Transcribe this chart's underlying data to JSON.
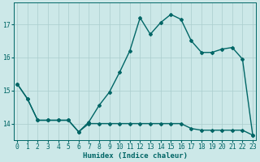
{
  "xlabel": "Humidex (Indice chaleur)",
  "background_color": "#cce8e8",
  "grid_color": "#aacece",
  "line_color": "#006666",
  "x": [
    0,
    1,
    2,
    3,
    4,
    5,
    6,
    7,
    8,
    9,
    10,
    11,
    12,
    13,
    14,
    15,
    16,
    17,
    18,
    19,
    20,
    21,
    22,
    23
  ],
  "y_upper": [
    15.2,
    14.75,
    14.1,
    14.1,
    14.1,
    14.1,
    13.75,
    14.05,
    14.55,
    14.95,
    15.55,
    16.2,
    17.2,
    16.7,
    17.05,
    17.3,
    17.15,
    16.5,
    16.15,
    16.15,
    16.25,
    16.3,
    15.95,
    13.65
  ],
  "y_lower": [
    15.2,
    14.75,
    14.1,
    14.1,
    14.1,
    14.1,
    13.75,
    14.0,
    14.0,
    14.0,
    14.0,
    14.0,
    14.0,
    14.0,
    14.0,
    14.0,
    14.0,
    13.85,
    13.8,
    13.8,
    13.8,
    13.8,
    13.8,
    13.65
  ],
  "ylim": [
    13.5,
    17.65
  ],
  "yticks": [
    14,
    15,
    16,
    17
  ],
  "xticks": [
    0,
    1,
    2,
    3,
    4,
    5,
    6,
    7,
    8,
    9,
    10,
    11,
    12,
    13,
    14,
    15,
    16,
    17,
    18,
    19,
    20,
    21,
    22,
    23
  ],
  "xlabel_fontsize": 6.5,
  "tick_fontsize": 5.8,
  "linewidth": 1.0,
  "markersize": 2.0,
  "fig_width": 3.2,
  "fig_height": 2.0,
  "dpi": 100
}
